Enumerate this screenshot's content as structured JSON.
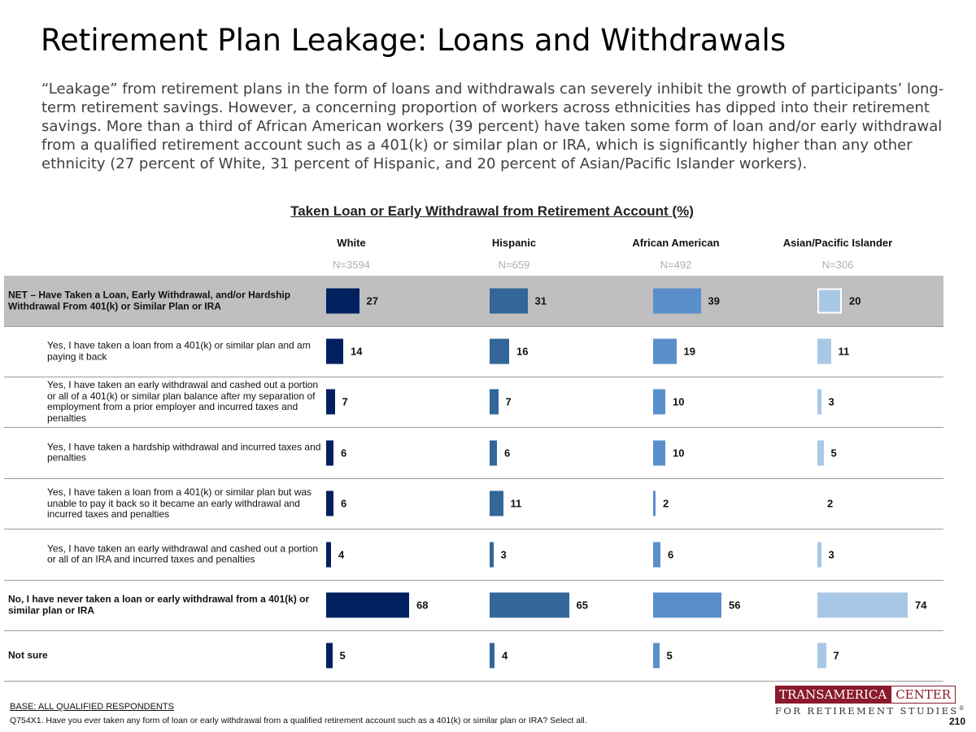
{
  "header": {
    "title": "Retirement Plan Leakage: Loans and Withdrawals",
    "intro": "“Leakage” from retirement plans in the form of loans and withdrawals can severely inhibit the growth of participants’ long-term retirement savings. However, a concerning proportion of workers across ethnicities has dipped into their retirement savings. More than a third of African American workers (39 percent) have taken some form of loan and/or early withdrawal from a qualified retirement account such as a 401(k) or similar plan or IRA, which is significantly higher than any other ethnicity (27 percent of White, 31 percent of Hispanic, and 20 percent of Asian/Pacific Islander workers)."
  },
  "chart_data": {
    "type": "bar",
    "orientation": "horizontal",
    "title": "Taken Loan or Early Withdrawal from Retirement Account (%)",
    "categories": [
      "NET – Have Taken a Loan, Early Withdrawal, and/or Hardship Withdrawal From 401(k) or Similar Plan or IRA",
      "Yes, I have taken a loan from a 401(k) or similar plan and am paying it back",
      "Yes, I have taken an early withdrawal and cashed out a portion or all of a 401(k) or similar plan balance after my separation of employment from a prior employer and incurred taxes and penalties",
      "Yes, I have taken a hardship withdrawal and incurred taxes and penalties",
      "Yes, I have taken a loan from a 401(k) or similar plan but was unable to pay it back so it became an early withdrawal and incurred taxes and penalties",
      "Yes, I have taken an early withdrawal and cashed out a portion or all of an IRA and incurred taxes and penalties",
      "No, I have never taken a loan or early withdrawal from a 401(k) or similar plan or IRA",
      "Not sure"
    ],
    "row_styles": [
      "bold-highlight",
      "sub",
      "sub",
      "sub",
      "sub",
      "sub",
      "bold",
      "bold"
    ],
    "series": [
      {
        "name": "White",
        "n": "N=3594",
        "color": "#002060",
        "values": [
          27,
          14,
          7,
          6,
          6,
          4,
          68,
          5
        ]
      },
      {
        "name": "Hispanic",
        "n": "N=659",
        "color": "#336699",
        "values": [
          31,
          16,
          7,
          6,
          11,
          3,
          65,
          4
        ]
      },
      {
        "name": "African American",
        "n": "N=492",
        "color": "#5b8fcc",
        "values": [
          39,
          19,
          10,
          10,
          2,
          6,
          56,
          5
        ]
      },
      {
        "name": "Asian/Pacific Islander",
        "n": "N=306",
        "color": "#a9c8e6",
        "values": [
          20,
          11,
          3,
          5,
          2,
          3,
          74,
          7
        ]
      }
    ],
    "xlim": [
      0,
      100
    ]
  },
  "footer": {
    "base": "BASE: ALL QUALIFIED RESPONDENTS",
    "question": "Q754X1. Have you ever taken any form of loan or early withdrawal from a qualified retirement account such as a 401(k) or similar plan or IRA? Select all.",
    "logo_left": "TRANSAMERICA",
    "logo_right": "CENTER",
    "logo_bottom": "FOR RETIREMENT STUDIES",
    "logo_mark": "®",
    "page": "210"
  }
}
